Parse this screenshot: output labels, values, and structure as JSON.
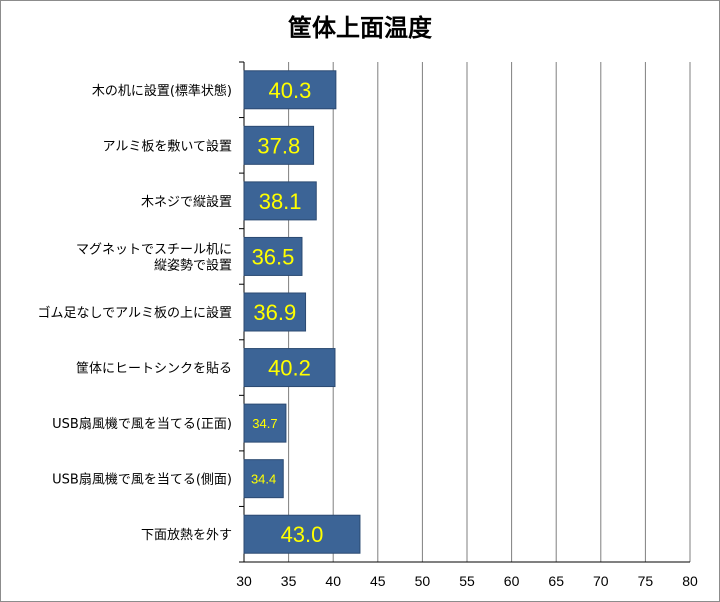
{
  "chart_data": {
    "type": "bar",
    "orientation": "horizontal",
    "title": "筐体上面温度",
    "categories": [
      [
        "木の机に設置(標準状態)"
      ],
      [
        "アルミ板を敷いて設置"
      ],
      [
        "木ネジで縦設置"
      ],
      [
        "マグネットでスチール机に",
        "縦姿勢で設置"
      ],
      [
        "ゴム足なしでアルミ板の上に設置"
      ],
      [
        "筐体にヒートシンクを貼る"
      ],
      [
        "USB扇風機で風を当てる(正面)"
      ],
      [
        "USB扇風機で風を当てる(側面)"
      ],
      [
        "下面放熱を外す"
      ]
    ],
    "values": [
      40.3,
      37.8,
      38.1,
      36.5,
      36.9,
      40.2,
      34.7,
      34.4,
      43.0
    ],
    "data_labels": [
      "40.3",
      "37.8",
      "38.1",
      "36.5",
      "36.9",
      "40.2",
      "34.7",
      "34.4",
      "43.0"
    ],
    "xlim": [
      30,
      80
    ],
    "xticks": [
      30,
      35,
      40,
      45,
      50,
      55,
      60,
      65,
      70,
      75,
      80
    ],
    "grid": true,
    "legend": "none",
    "colors": {
      "bar": "#3c6496",
      "bar_border": "#2b4a72",
      "grid": "#7f7f7f",
      "label": "#ffff00"
    }
  }
}
